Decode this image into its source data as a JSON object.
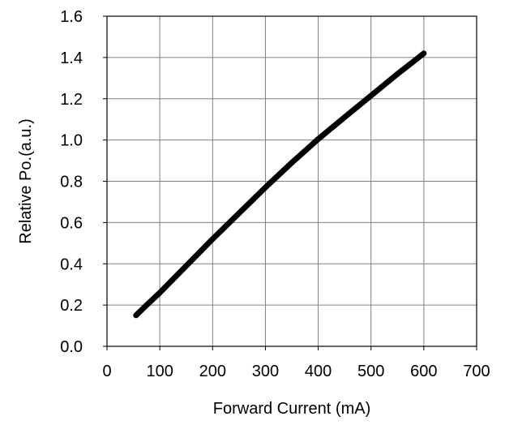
{
  "chart_data": {
    "type": "line",
    "title": "",
    "xlabel": "Forward Current (mA)",
    "ylabel": "Relative Po.(a.u.)",
    "xlim": [
      0,
      700
    ],
    "ylim": [
      0,
      1.6
    ],
    "x_ticks": [
      "0",
      "100",
      "200",
      "300",
      "400",
      "500",
      "600",
      "700"
    ],
    "y_ticks": [
      "0.0",
      "0.2",
      "0.4",
      "0.6",
      "0.8",
      "1.0",
      "1.2",
      "1.4",
      "1.6"
    ],
    "grid": true,
    "legend": "none",
    "series": [
      {
        "color": "#000000",
        "x": [
          55,
          75,
          100,
          150,
          200,
          250,
          300,
          350,
          400,
          450,
          500,
          550,
          600
        ],
        "y": [
          0.15,
          0.2,
          0.26,
          0.39,
          0.52,
          0.645,
          0.77,
          0.89,
          1.005,
          1.11,
          1.215,
          1.32,
          1.42
        ]
      }
    ]
  }
}
